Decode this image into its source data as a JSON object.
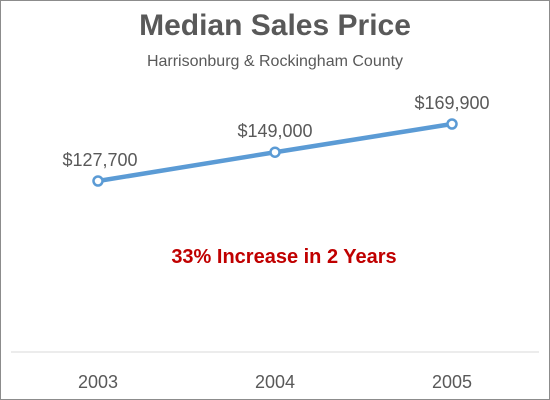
{
  "chart_data": {
    "type": "line",
    "title": "Median Sales Price",
    "subtitle": "Harrisonburg & Rockingham County",
    "categories": [
      "2003",
      "2004",
      "2005"
    ],
    "series": [
      {
        "values": [
          127700,
          149000,
          169900
        ]
      }
    ],
    "data_labels": [
      "$127,700",
      "$149,000",
      "$169,900"
    ],
    "annotation": "33% Increase in 2 Years",
    "xlabel": "",
    "ylabel": "",
    "grid": false,
    "colors": {
      "line": "#5b9bd5",
      "annotation": "#c00000",
      "text": "#595959",
      "axis": "#d9d9d9"
    }
  }
}
